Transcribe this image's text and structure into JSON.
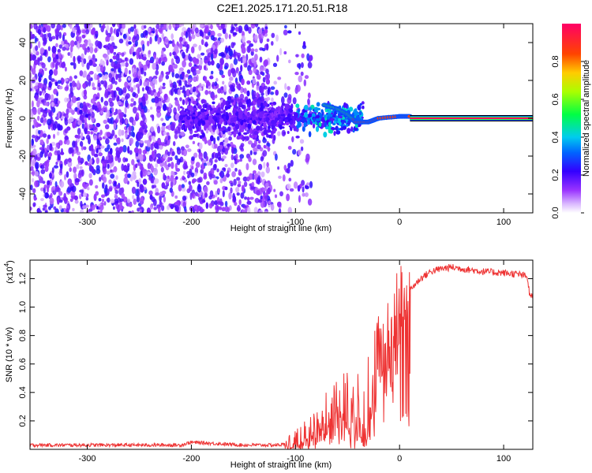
{
  "title": "C2E1.2025.171.20.51.R18",
  "chart_data": [
    {
      "type": "heatmap",
      "xlabel": "Height of straight line (km)",
      "ylabel": "Frequency (Hz)",
      "xlim": [
        -355,
        128
      ],
      "ylim": [
        -50,
        50
      ],
      "x_ticks": [
        -300,
        -200,
        -100,
        0,
        100
      ],
      "y_ticks": [
        -40,
        -20,
        0,
        20,
        40
      ],
      "colorbar": {
        "label": "Normalized spectral amplitude",
        "range": [
          0,
          1
        ],
        "ticks": [
          "0.0",
          "0.2",
          "0.4",
          "0.6",
          "0.8"
        ],
        "colors": [
          "#ffffff",
          "#b74cff",
          "#6600ff",
          "#0000ff",
          "#00c8ff",
          "#00ff66",
          "#ccff00",
          "#ffaa00",
          "#ff0000",
          "#ff0066"
        ]
      },
      "features": {
        "scatter_region_x": [
          -355,
          -100
        ],
        "scatter_region_y": [
          -50,
          50
        ],
        "scatter_amplitude": 0.1,
        "transition_x": [
          -100,
          -40
        ],
        "transition_peak_amplitude": 0.35,
        "dopper_curve": [
          [
            -72,
            7
          ],
          [
            -60,
            5
          ],
          [
            -50,
            2
          ],
          [
            -42,
            -2
          ],
          [
            -30,
            -2
          ],
          [
            -20,
            0
          ],
          [
            0,
            1
          ],
          [
            10,
            1
          ]
        ],
        "tone_x": [
          10,
          128
        ],
        "tone_frequency": 0,
        "tone_amplitude": 1.0
      }
    },
    {
      "type": "line",
      "xlabel": "Height of straight line (km)",
      "ylabel": "SNR (10 * v/v)",
      "y_scale_label": "(x10",
      "y_scale_exp": "4",
      "xlim": [
        -355,
        128
      ],
      "ylim": [
        0,
        1.33
      ],
      "x_ticks": [
        -300,
        -200,
        -100,
        0,
        100
      ],
      "y_ticks": [
        "0.2",
        "0.4",
        "0.6",
        "0.8",
        "1.0",
        "1.2"
      ],
      "color": "#ee3333",
      "series": [
        {
          "x": [
            -355,
            -300,
            -250,
            -210,
            -200,
            -150,
            -120,
            -100,
            -90,
            -80,
            -70,
            -60,
            -50,
            -40,
            -35,
            -30,
            -25,
            -20,
            -15,
            -10,
            -5,
            0,
            10,
            20,
            30,
            40,
            50,
            60,
            80,
            100,
            115,
            120,
            123,
            125,
            128
          ],
          "y": [
            0.03,
            0.03,
            0.03,
            0.03,
            0.05,
            0.03,
            0.03,
            0.04,
            0.08,
            0.15,
            0.25,
            0.3,
            0.3,
            0.25,
            0.15,
            0.35,
            0.5,
            0.65,
            0.75,
            0.85,
            0.9,
            1.0,
            1.12,
            1.2,
            1.25,
            1.27,
            1.28,
            1.27,
            1.25,
            1.24,
            1.23,
            1.22,
            1.2,
            1.08,
            1.07
          ]
        }
      ]
    }
  ]
}
